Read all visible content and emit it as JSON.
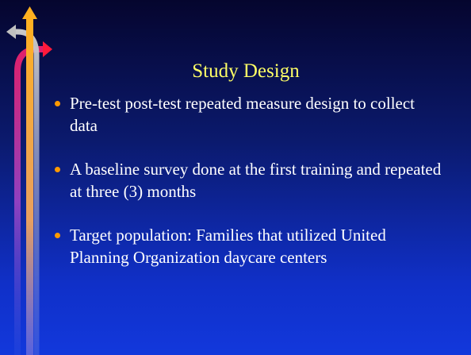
{
  "slide": {
    "title": "Study Design",
    "bullets": [
      "Pre-test post-test repeated measure design to collect data",
      "A baseline survey done at the first training and repeated at three (3) months",
      "Target population: Families that utilized United Planning Organization daycare centers"
    ]
  }
}
